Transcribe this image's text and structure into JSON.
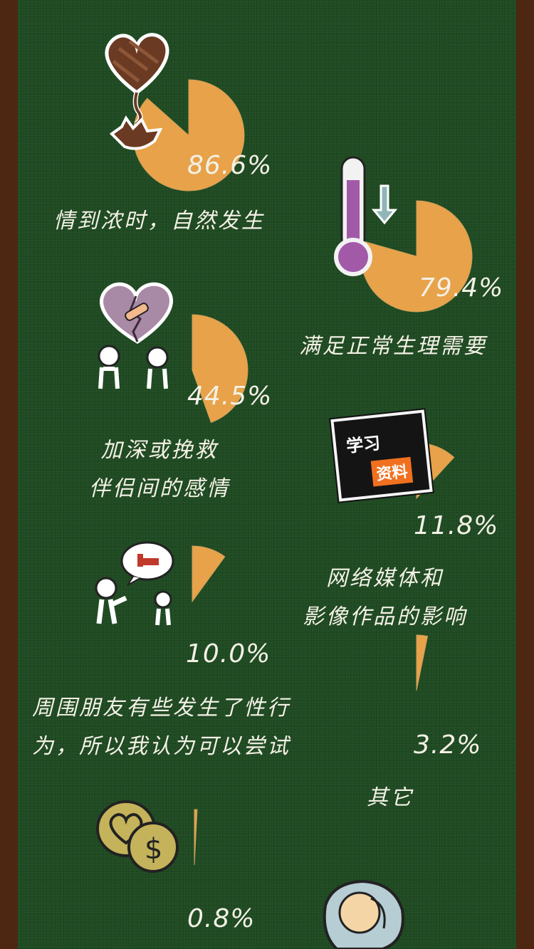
{
  "chart_data": {
    "type": "pie",
    "colors": {
      "slice": "#e8a24a",
      "remainder": "#1f4a22",
      "text": "#f4f1e6"
    },
    "items": [
      {
        "value": 86.6,
        "value_label": "86.6%",
        "label_lines": [
          "情到浓时，自然发生"
        ],
        "icon": "chocolate-heart-icon"
      },
      {
        "value": 79.4,
        "value_label": "79.4%",
        "label_lines": [
          "满足正常生理需要"
        ],
        "icon": "thermometer-icon"
      },
      {
        "value": 44.5,
        "value_label": "44.5%",
        "label_lines": [
          "加深或挽救",
          "伴侣间的感情"
        ],
        "icon": "broken-heart-couple-icon"
      },
      {
        "value": 11.8,
        "value_label": "11.8%",
        "label_lines": [
          "网络媒体和",
          "影像作品的影响"
        ],
        "icon": "study-material-sign-icon"
      },
      {
        "value": 10.0,
        "value_label": "10.0%",
        "label_lines": [
          "周围朋友有些发生了性行",
          "为，所以我认为可以尝试"
        ],
        "icon": "friends-talking-icon"
      },
      {
        "value": 3.2,
        "value_label": "3.2%",
        "label_lines": [
          "其它"
        ],
        "icon": "none"
      },
      {
        "value": 0.8,
        "value_label": "0.8%",
        "label_lines": [],
        "icon": "coins-icon"
      }
    ]
  },
  "study_sign": {
    "top_text": "学习",
    "bottom_text": "资料"
  }
}
